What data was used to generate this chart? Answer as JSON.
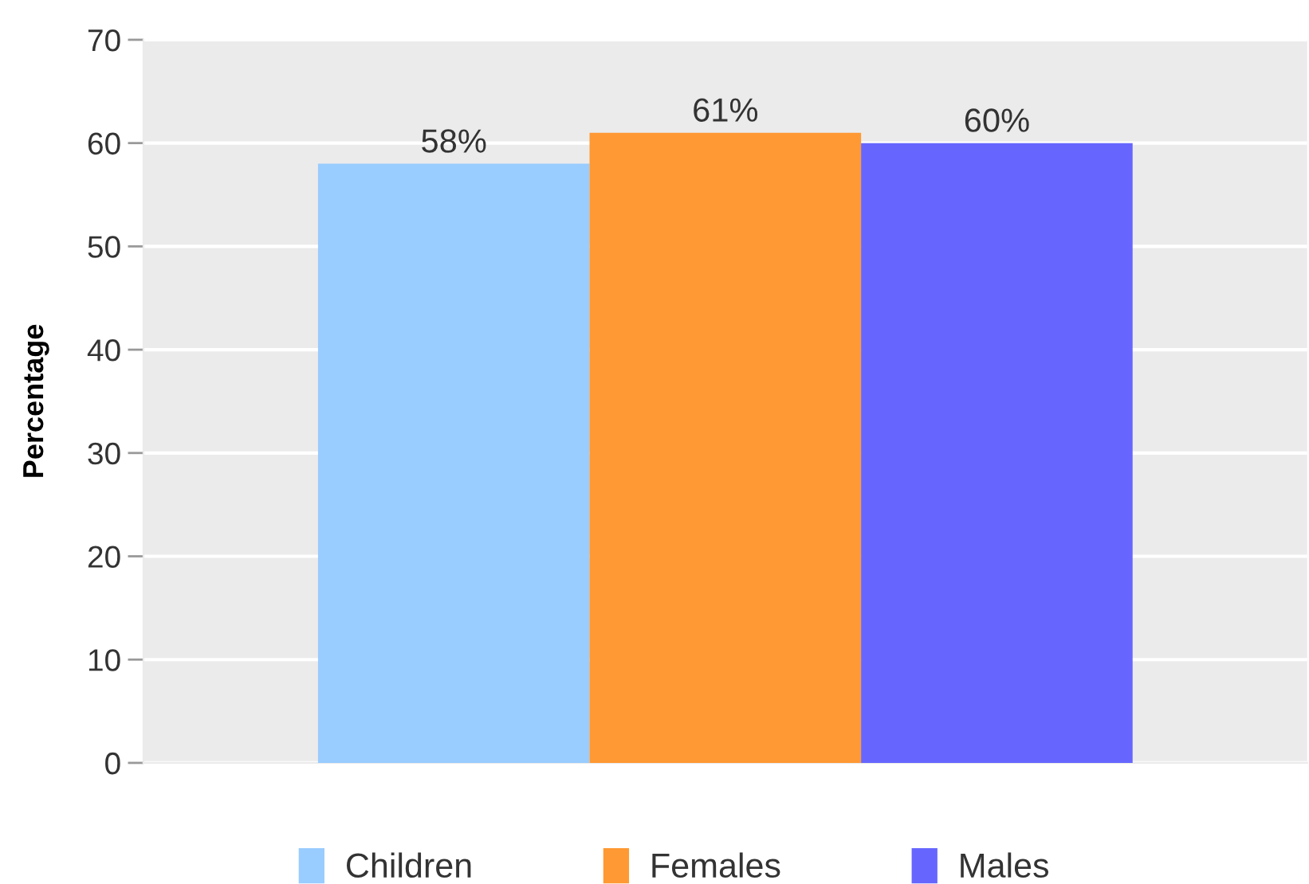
{
  "chart_data": {
    "type": "bar",
    "ylabel": "Percentage",
    "categories": [
      null
    ],
    "series": [
      {
        "name": "Children",
        "color": "#99ccff",
        "values": [
          58
        ],
        "value_labels": [
          "58%"
        ]
      },
      {
        "name": "Females",
        "color": "#ff9933",
        "values": [
          61
        ],
        "value_labels": [
          "61%"
        ]
      },
      {
        "name": "Males",
        "color": "#6666ff",
        "values": [
          60
        ],
        "value_labels": [
          "60%"
        ]
      }
    ],
    "ylim": [
      0,
      70
    ],
    "yticks": [
      0,
      10,
      20,
      30,
      40,
      50,
      60,
      70
    ],
    "grid": "y",
    "legend": "bottom",
    "tick_labels": "y"
  }
}
